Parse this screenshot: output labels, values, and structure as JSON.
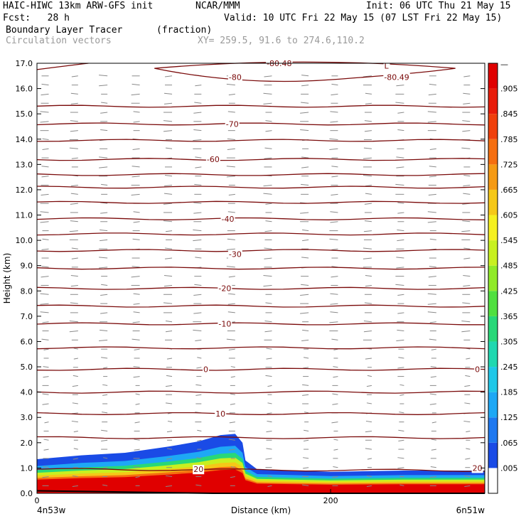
{
  "header": {
    "model": "HAIC-HIWC 13km ARW-GFS init",
    "org": "NCAR/MMM",
    "init": "Init: 06 UTC Thu 21 May 15",
    "fcst": "Fcst:   28 h",
    "valid": "Valid: 10 UTC Fri 22 May 15 (07 LST Fri 22 May 15)",
    "field": "Boundary Layer Tracer",
    "units": "(fraction)",
    "vectors": "Circulation vectors",
    "xy": "XY= 259.5, 91.6 to 274.6,110.2"
  },
  "chart_data": {
    "type": "cross-section",
    "ylabel": "Height (km)",
    "xlabel": "Distance (km)",
    "ylim": [
      0,
      17
    ],
    "yticks": [
      "0.0",
      "1.0",
      "2.0",
      "3.0",
      "4.0",
      "5.0",
      "6.0",
      "7.0",
      "8.0",
      "9.0",
      "10.0",
      "11.0",
      "12.0",
      "13.0",
      "14.0",
      "15.0",
      "16.0",
      "17.0"
    ],
    "xticks": [
      "0",
      "200"
    ],
    "xtick_values": [
      0,
      200
    ],
    "xlim": [
      0,
      305
    ],
    "left_endpoint": "4n53w",
    "right_endpoint": "6n51w",
    "isotherm_labels": [
      {
        "text": "20",
        "x": 110,
        "y": 0.95
      },
      {
        "text": "20",
        "x": 300,
        "y": 1.0
      },
      {
        "text": "10",
        "x": 125,
        "y": 3.15
      },
      {
        "text": "0",
        "x": 115,
        "y": 4.9
      },
      {
        "text": "0",
        "x": 300,
        "y": 4.9
      },
      {
        "text": "-10",
        "x": 128,
        "y": 6.7
      },
      {
        "text": "-20",
        "x": 128,
        "y": 8.1
      },
      {
        "text": "-30",
        "x": 135,
        "y": 9.45
      },
      {
        "text": "-40",
        "x": 130,
        "y": 10.85
      },
      {
        "text": "-60",
        "x": 120,
        "y": 13.2
      },
      {
        "text": "-70",
        "x": 133,
        "y": 14.6
      },
      {
        "text": "-80",
        "x": 135,
        "y": 16.45
      },
      {
        "text": "-80.49",
        "x": 245,
        "y": 16.45
      },
      {
        "text": "L",
        "x": 238,
        "y": 16.9
      },
      {
        "text": "-80.48",
        "x": 165,
        "y": 17.0
      }
    ],
    "isotherm_heights_km": [
      0.95,
      2.2,
      3.15,
      4.0,
      4.9,
      5.75,
      6.7,
      7.4,
      8.1,
      8.9,
      9.6,
      10.25,
      10.85,
      11.5,
      12.1,
      12.6,
      13.2,
      13.95,
      14.6,
      15.3
    ],
    "tracer_top_km": [
      {
        "x": 0,
        "top": 1.35
      },
      {
        "x": 30,
        "top": 1.5
      },
      {
        "x": 60,
        "top": 1.6
      },
      {
        "x": 90,
        "top": 1.85
      },
      {
        "x": 110,
        "top": 2.05
      },
      {
        "x": 125,
        "top": 2.3
      },
      {
        "x": 135,
        "top": 2.35
      },
      {
        "x": 140,
        "top": 2.0
      },
      {
        "x": 142,
        "top": 1.3
      },
      {
        "x": 150,
        "top": 0.95
      },
      {
        "x": 200,
        "top": 0.85
      },
      {
        "x": 250,
        "top": 0.9
      },
      {
        "x": 305,
        "top": 0.9
      }
    ],
    "colorbar": {
      "labels": [
        ".005",
        ".065",
        ".125",
        ".185",
        ".245",
        ".305",
        ".365",
        ".425",
        ".485",
        ".545",
        ".605",
        ".665",
        ".725",
        ".785",
        ".845",
        ".905"
      ],
      "top_label": "—",
      "colors": [
        "#ffffff",
        "#1a4be6",
        "#1e78f0",
        "#1ea8f5",
        "#20c8e8",
        "#20d8b0",
        "#28d878",
        "#50e040",
        "#90ea28",
        "#c8f020",
        "#f5f020",
        "#f5c818",
        "#f59a14",
        "#f56e10",
        "#f0400c",
        "#e81c0a",
        "#e00000"
      ]
    },
    "grid": false
  }
}
